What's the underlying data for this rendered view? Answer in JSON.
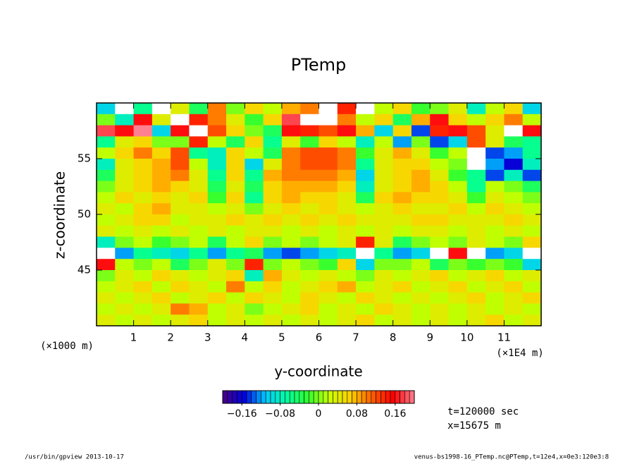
{
  "chart_data": {
    "type": "heatmap",
    "title": "PTemp",
    "xlabel": "y-coordinate",
    "ylabel": "z-coordinate",
    "xunit": "(×1E4 m)",
    "yunit": "(×1000 m)",
    "annotations": [
      "t=120000 sec",
      "x=15675 m"
    ],
    "footer_left": "/usr/bin/gpview   2013-10-17",
    "footer_right": "venus-bs1998-16_PTemp.nc@PTemp,t=12e4,x=0e3:120e3:8",
    "xlim": [
      0,
      12
    ],
    "ylim": [
      40,
      60
    ],
    "xticks": [
      1,
      2,
      3,
      4,
      5,
      6,
      7,
      8,
      9,
      10,
      11
    ],
    "yticks": [
      45,
      50,
      55
    ],
    "x": [
      0.25,
      0.75,
      1.25,
      1.75,
      2.25,
      2.75,
      3.25,
      3.75,
      4.25,
      4.75,
      5.25,
      5.75,
      6.25,
      6.75,
      7.25,
      7.75,
      8.25,
      8.75,
      9.25,
      9.75,
      10.25,
      10.75,
      11.25,
      11.75
    ],
    "z": [
      59.5,
      58.5,
      57.5,
      56.5,
      55.5,
      54.5,
      53.5,
      52.5,
      51.5,
      50.5,
      49.5,
      48.5,
      47.5,
      46.5,
      45.5,
      44.5,
      43.5,
      42.5,
      41.5,
      40.5
    ],
    "values": [
      [
        -0.1,
        0.22,
        -0.06,
        0.22,
        0.04,
        -0.04,
        0.1,
        0.0,
        0.06,
        0.02,
        0.08,
        0.1,
        0.22,
        0.14,
        0.22,
        0.02,
        0.06,
        -0.02,
        0.0,
        0.04,
        -0.08,
        0.02,
        0.06,
        -0.1
      ],
      [
        0.0,
        -0.08,
        0.16,
        0.04,
        0.22,
        0.14,
        0.1,
        0.04,
        -0.02,
        0.06,
        0.18,
        0.22,
        0.22,
        0.1,
        0.02,
        0.06,
        -0.04,
        0.08,
        0.16,
        0.06,
        0.02,
        0.06,
        0.1,
        0.02
      ],
      [
        0.18,
        0.16,
        0.2,
        -0.1,
        0.16,
        0.22,
        0.12,
        0.06,
        0.0,
        -0.04,
        0.16,
        0.14,
        0.12,
        0.16,
        0.08,
        -0.1,
        0.06,
        -0.14,
        0.14,
        0.16,
        0.12,
        0.04,
        0.22,
        0.16
      ],
      [
        -0.06,
        0.04,
        0.06,
        0.0,
        0.0,
        0.14,
        0.02,
        -0.04,
        0.06,
        -0.06,
        0.04,
        -0.02,
        0.06,
        0.02,
        -0.08,
        0.02,
        -0.12,
        0.0,
        -0.14,
        -0.1,
        0.12,
        0.04,
        -0.04,
        -0.06
      ],
      [
        0.02,
        0.06,
        0.1,
        0.06,
        0.12,
        -0.06,
        -0.08,
        0.06,
        0.02,
        -0.04,
        0.1,
        0.12,
        0.12,
        0.1,
        -0.02,
        0.04,
        0.08,
        0.04,
        -0.02,
        0.02,
        0.22,
        -0.14,
        -0.12,
        -0.06
      ],
      [
        -0.08,
        0.04,
        0.06,
        0.08,
        0.12,
        0.02,
        -0.08,
        0.06,
        -0.1,
        0.04,
        0.1,
        0.12,
        0.12,
        0.1,
        -0.06,
        0.04,
        0.06,
        0.06,
        0.02,
        0.0,
        0.22,
        -0.12,
        -0.16,
        -0.08
      ],
      [
        -0.04,
        0.04,
        0.06,
        0.08,
        0.1,
        0.04,
        -0.06,
        0.06,
        -0.06,
        0.08,
        0.1,
        0.1,
        0.1,
        0.08,
        -0.1,
        0.04,
        0.06,
        0.08,
        0.04,
        -0.02,
        -0.06,
        -0.14,
        -0.08,
        -0.14
      ],
      [
        0.0,
        0.04,
        0.06,
        0.08,
        0.06,
        0.04,
        -0.04,
        0.04,
        -0.04,
        0.06,
        0.08,
        0.08,
        0.08,
        0.06,
        -0.08,
        0.04,
        0.06,
        0.08,
        0.06,
        0.02,
        -0.06,
        0.02,
        0.0,
        -0.04
      ],
      [
        0.02,
        0.06,
        0.04,
        0.06,
        0.04,
        0.06,
        -0.02,
        0.06,
        -0.06,
        0.06,
        0.08,
        0.06,
        0.06,
        0.04,
        -0.04,
        0.06,
        0.08,
        0.06,
        0.06,
        0.04,
        -0.02,
        0.04,
        0.02,
        0.0
      ],
      [
        0.04,
        0.02,
        0.06,
        0.08,
        0.04,
        0.04,
        0.02,
        0.04,
        0.0,
        0.04,
        0.06,
        0.04,
        0.06,
        0.04,
        0.02,
        0.04,
        0.06,
        0.04,
        0.04,
        0.06,
        0.02,
        0.06,
        0.04,
        0.02
      ],
      [
        0.02,
        0.04,
        0.06,
        0.06,
        0.02,
        0.04,
        0.04,
        0.06,
        0.04,
        0.06,
        0.04,
        0.06,
        0.04,
        0.06,
        0.04,
        0.04,
        0.04,
        0.06,
        0.06,
        0.04,
        0.04,
        0.04,
        0.06,
        0.04
      ],
      [
        0.04,
        0.02,
        0.04,
        0.02,
        0.04,
        0.02,
        0.04,
        0.02,
        0.04,
        0.04,
        0.02,
        0.04,
        0.02,
        0.04,
        0.02,
        0.04,
        0.02,
        0.04,
        0.04,
        0.02,
        0.04,
        0.02,
        0.04,
        0.02
      ],
      [
        -0.08,
        0.0,
        0.02,
        -0.02,
        0.0,
        0.02,
        -0.04,
        0.02,
        0.06,
        0.0,
        0.02,
        0.0,
        0.02,
        0.04,
        0.14,
        0.04,
        -0.04,
        0.0,
        0.02,
        0.0,
        0.04,
        0.02,
        0.0,
        0.06
      ],
      [
        0.22,
        -0.12,
        -0.06,
        -0.08,
        -0.1,
        -0.06,
        -0.12,
        -0.06,
        -0.04,
        -0.12,
        -0.14,
        -0.12,
        -0.1,
        -0.08,
        0.22,
        -0.06,
        -0.12,
        -0.1,
        0.22,
        0.16,
        0.22,
        -0.12,
        -0.1,
        0.22
      ],
      [
        0.16,
        0.02,
        0.0,
        0.02,
        -0.04,
        0.0,
        0.04,
        0.0,
        0.14,
        0.0,
        0.02,
        0.0,
        -0.02,
        0.06,
        -0.1,
        0.0,
        0.0,
        0.02,
        -0.04,
        0.0,
        -0.02,
        0.0,
        -0.02,
        -0.1
      ],
      [
        0.0,
        0.04,
        0.02,
        0.06,
        0.04,
        0.02,
        0.04,
        0.06,
        -0.08,
        0.08,
        0.04,
        0.02,
        0.04,
        0.02,
        0.0,
        0.04,
        0.02,
        0.04,
        0.06,
        0.02,
        0.04,
        0.06,
        0.02,
        0.04
      ],
      [
        0.02,
        0.04,
        0.06,
        0.02,
        0.06,
        0.04,
        0.02,
        0.1,
        0.02,
        0.06,
        0.02,
        0.04,
        0.06,
        0.08,
        0.02,
        0.04,
        0.06,
        0.02,
        0.04,
        0.06,
        0.02,
        0.04,
        0.06,
        0.02
      ],
      [
        0.04,
        0.02,
        0.04,
        0.06,
        0.02,
        0.04,
        0.06,
        0.02,
        0.06,
        0.04,
        0.02,
        0.06,
        0.04,
        0.02,
        0.06,
        0.04,
        0.02,
        0.04,
        0.02,
        0.04,
        0.06,
        0.02,
        0.04,
        0.06
      ],
      [
        0.02,
        0.04,
        0.02,
        0.04,
        0.1,
        0.08,
        0.02,
        0.04,
        0.0,
        0.02,
        0.04,
        0.06,
        0.02,
        0.04,
        0.02,
        0.06,
        0.04,
        0.02,
        0.04,
        0.02,
        0.04,
        0.02,
        0.04,
        0.02
      ],
      [
        0.04,
        0.02,
        0.04,
        0.02,
        0.04,
        0.06,
        0.02,
        0.04,
        0.02,
        0.04,
        0.02,
        0.04,
        0.02,
        0.04,
        0.06,
        0.02,
        0.04,
        0.02,
        0.04,
        0.02,
        0.04,
        0.06,
        0.02,
        0.04
      ]
    ],
    "clim": [
      -0.2,
      0.2
    ],
    "cticks": [
      {
        "value": -0.16,
        "label": "−0.16"
      },
      {
        "value": -0.08,
        "label": "−0.08"
      },
      0,
      0.08,
      0.16
    ],
    "colormap": [
      "#4b0082",
      "#0000e0",
      "#00c8ff",
      "#00ffa0",
      "#30ff30",
      "#c8ff00",
      "#ffd000",
      "#ff6000",
      "#ff0000",
      "#ff8090"
    ],
    "over_color": "#ffffff",
    "under_color": "#ffffff"
  }
}
